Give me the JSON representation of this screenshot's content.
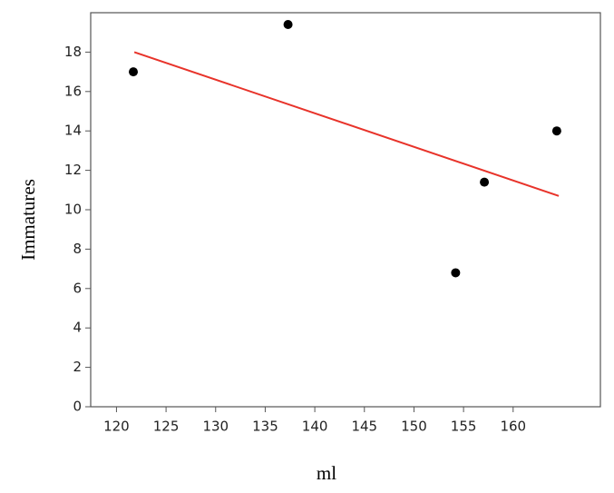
{
  "chart_data": {
    "type": "scatter",
    "x_label": "ml",
    "y_label": "Immatures",
    "x": [
      121.7,
      137.3,
      154.2,
      157.1,
      164.4
    ],
    "values": [
      17,
      19.4,
      6.8,
      11.4,
      14
    ],
    "color": "#000000",
    "trendline": {
      "x": [
        121.8,
        164.6
      ],
      "y": [
        18.0,
        10.7
      ],
      "color": "#e8332a"
    },
    "xlim": [
      117.4,
      168.8
    ],
    "ylim": [
      0,
      20
    ],
    "xticks": [
      120,
      125,
      130,
      135,
      140,
      145,
      150,
      155,
      160
    ],
    "yticks": [
      0,
      2,
      4,
      6,
      8,
      10,
      12,
      14,
      16,
      18
    ]
  }
}
